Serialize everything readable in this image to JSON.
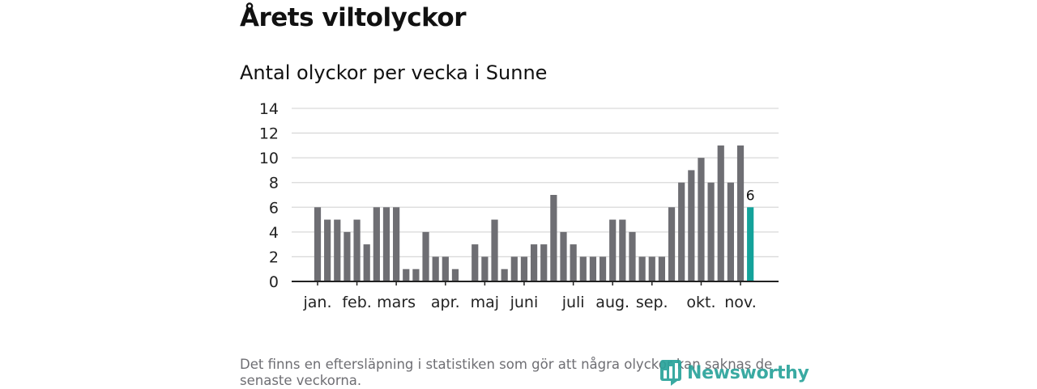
{
  "header": {
    "title": "Årets viltolyckor",
    "subtitle": "Antal olyckor per vecka i Sunne"
  },
  "chart_data": {
    "type": "bar",
    "title": "Antal olyckor per vecka i Sunne",
    "xlabel": "",
    "ylabel": "",
    "ylim": [
      0,
      14
    ],
    "yticks": [
      "0",
      "2",
      "4",
      "6",
      "8",
      "10",
      "12",
      "14"
    ],
    "grid": true,
    "values": [
      6,
      5,
      5,
      4,
      5,
      3,
      6,
      6,
      6,
      1,
      1,
      4,
      2,
      2,
      1,
      0,
      3,
      2,
      5,
      1,
      2,
      2,
      3,
      3,
      7,
      4,
      3,
      2,
      2,
      2,
      5,
      5,
      4,
      2,
      2,
      2,
      6,
      8,
      9,
      10,
      8,
      11,
      8,
      11,
      6
    ],
    "highlight_index": 44,
    "highlight_label": "6",
    "month_labels": [
      {
        "label": "jan.",
        "bar": 0
      },
      {
        "label": "feb.",
        "bar": 4
      },
      {
        "label": "mars",
        "bar": 8
      },
      {
        "label": "apr.",
        "bar": 13
      },
      {
        "label": "maj",
        "bar": 17
      },
      {
        "label": "juni",
        "bar": 21
      },
      {
        "label": "juli",
        "bar": 26
      },
      {
        "label": "aug.",
        "bar": 30
      },
      {
        "label": "sep.",
        "bar": 34
      },
      {
        "label": "okt.",
        "bar": 39
      },
      {
        "label": "nov.",
        "bar": 43
      }
    ],
    "colors": {
      "bar": "#6e6e73",
      "highlight": "#13a29a",
      "grid": "#d9d9d9",
      "axis": "#222222"
    }
  },
  "footer": {
    "note": "Det finns en eftersläpning i statistiken som gör att några olyckor kan saknas de senaste veckorna.",
    "logo_text": "Newsworthy",
    "logo_icon": "newsworthy-logo-icon",
    "logo_color": "#2aa39b"
  }
}
